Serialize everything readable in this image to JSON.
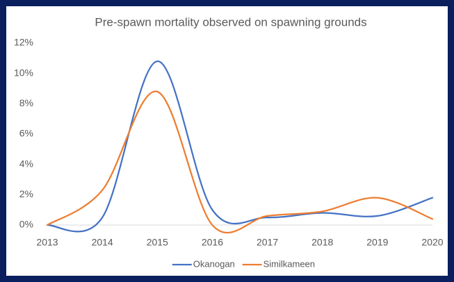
{
  "chart_data": {
    "type": "line",
    "title": "Pre-spawn mortality observed on spawning grounds",
    "x": [
      2013,
      2014,
      2015,
      2016,
      2017,
      2018,
      2019,
      2020
    ],
    "series": [
      {
        "name": "Okanogan",
        "color": "#4472c4",
        "values": [
          0,
          0.5,
          10.8,
          1.0,
          0.5,
          0.8,
          0.6,
          1.8
        ]
      },
      {
        "name": "Similkameen",
        "color": "#ed7d31",
        "values": [
          0,
          2.3,
          8.8,
          0,
          0.6,
          0.9,
          1.8,
          0.4
        ]
      }
    ],
    "xlim": [
      2013,
      2020
    ],
    "xticks": [
      2013,
      2014,
      2015,
      2016,
      2017,
      2018,
      2019,
      2020
    ],
    "ylim": [
      0,
      12
    ],
    "yticks": [
      {
        "value": 0,
        "label": "0%"
      },
      {
        "value": 2,
        "label": "2%"
      },
      {
        "value": 4,
        "label": "4%"
      },
      {
        "value": 6,
        "label": "6%"
      },
      {
        "value": 8,
        "label": "8%"
      },
      {
        "value": 10,
        "label": "10%"
      },
      {
        "value": 12,
        "label": "12%"
      }
    ],
    "grid": false,
    "legend": "bottom"
  }
}
